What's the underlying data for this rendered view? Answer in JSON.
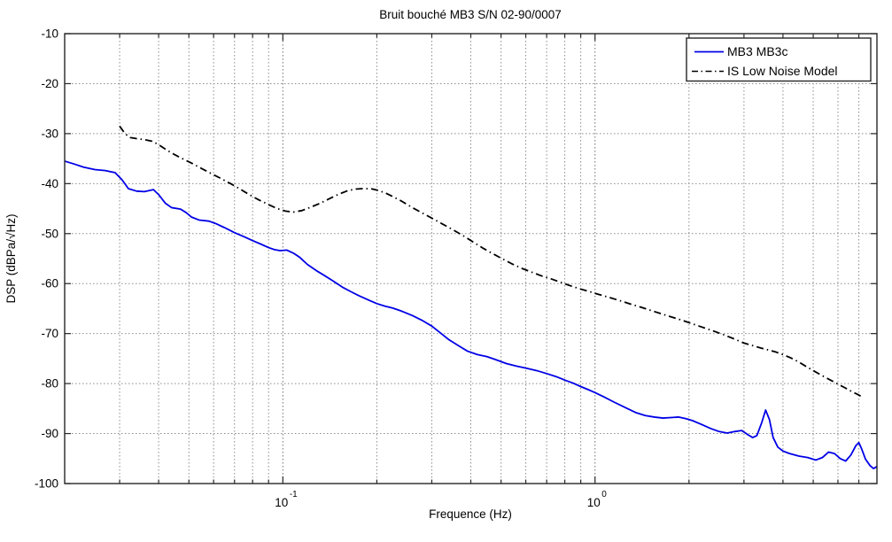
{
  "figure": {
    "title": "Bruit bouché MB3 S/N 02-90/0007",
    "xlabel": "Frequence (Hz)",
    "ylabel": "DSP (dBPa/√Hz)"
  },
  "colors": {
    "series1": "#0000e6",
    "series2": "#000000",
    "grid_minor": "#8c8c8c",
    "grid_major": "#6e6e6e",
    "axis_box": "#262626",
    "background": "#ffffff"
  },
  "chart_data": {
    "type": "line",
    "title": "Bruit bouché MB3 S/N 02-90/0007",
    "xlabel": "Frequence (Hz)",
    "ylabel": "DSP (dBPa/√Hz)",
    "x_scale": "log",
    "xlim": [
      0.02,
      8
    ],
    "ylim": [
      -100,
      -10
    ],
    "grid": "dotted",
    "legend_position": "top-right",
    "y_ticks": [
      -10,
      -20,
      -30,
      -40,
      -50,
      -60,
      -70,
      -80,
      -90,
      -100
    ],
    "x_major_ticks": [
      {
        "value": 0.1,
        "label_base": "10",
        "label_exp": "-1"
      },
      {
        "value": 1,
        "label_base": "10",
        "label_exp": "0"
      }
    ],
    "series": [
      {
        "name": "MB3 MB3c",
        "color": "#0000e6",
        "line_style": "solid",
        "points": [
          [
            0.02,
            -35.5
          ],
          [
            0.0215,
            -36.1
          ],
          [
            0.023,
            -36.7
          ],
          [
            0.025,
            -37.2
          ],
          [
            0.027,
            -37.4
          ],
          [
            0.029,
            -37.8
          ],
          [
            0.0305,
            -39.2
          ],
          [
            0.032,
            -41.0
          ],
          [
            0.034,
            -41.5
          ],
          [
            0.036,
            -41.6
          ],
          [
            0.0385,
            -41.2
          ],
          [
            0.04,
            -42.2
          ],
          [
            0.042,
            -43.9
          ],
          [
            0.044,
            -44.8
          ],
          [
            0.047,
            -45.1
          ],
          [
            0.049,
            -45.8
          ],
          [
            0.051,
            -46.7
          ],
          [
            0.054,
            -47.3
          ],
          [
            0.058,
            -47.5
          ],
          [
            0.061,
            -48.0
          ],
          [
            0.065,
            -48.8
          ],
          [
            0.07,
            -49.8
          ],
          [
            0.075,
            -50.6
          ],
          [
            0.08,
            -51.4
          ],
          [
            0.085,
            -52.1
          ],
          [
            0.09,
            -52.8
          ],
          [
            0.094,
            -53.2
          ],
          [
            0.098,
            -53.4
          ],
          [
            0.103,
            -53.3
          ],
          [
            0.108,
            -53.9
          ],
          [
            0.113,
            -54.7
          ],
          [
            0.12,
            -56.2
          ],
          [
            0.128,
            -57.4
          ],
          [
            0.136,
            -58.4
          ],
          [
            0.145,
            -59.5
          ],
          [
            0.155,
            -60.7
          ],
          [
            0.165,
            -61.6
          ],
          [
            0.175,
            -62.4
          ],
          [
            0.19,
            -63.4
          ],
          [
            0.2,
            -64.0
          ],
          [
            0.212,
            -64.5
          ],
          [
            0.225,
            -64.9
          ],
          [
            0.24,
            -65.5
          ],
          [
            0.26,
            -66.4
          ],
          [
            0.28,
            -67.4
          ],
          [
            0.3,
            -68.5
          ],
          [
            0.32,
            -69.9
          ],
          [
            0.34,
            -71.2
          ],
          [
            0.365,
            -72.4
          ],
          [
            0.39,
            -73.5
          ],
          [
            0.42,
            -74.2
          ],
          [
            0.45,
            -74.6
          ],
          [
            0.48,
            -75.2
          ],
          [
            0.52,
            -76.0
          ],
          [
            0.56,
            -76.5
          ],
          [
            0.6,
            -76.9
          ],
          [
            0.65,
            -77.4
          ],
          [
            0.7,
            -78.0
          ],
          [
            0.75,
            -78.6
          ],
          [
            0.8,
            -79.3
          ],
          [
            0.85,
            -79.9
          ],
          [
            0.9,
            -80.6
          ],
          [
            0.95,
            -81.2
          ],
          [
            1.0,
            -81.8
          ],
          [
            1.07,
            -82.7
          ],
          [
            1.15,
            -83.7
          ],
          [
            1.25,
            -84.8
          ],
          [
            1.35,
            -85.8
          ],
          [
            1.45,
            -86.4
          ],
          [
            1.55,
            -86.7
          ],
          [
            1.65,
            -86.9
          ],
          [
            1.75,
            -86.8
          ],
          [
            1.85,
            -86.7
          ],
          [
            1.95,
            -87.0
          ],
          [
            2.05,
            -87.4
          ],
          [
            2.2,
            -88.2
          ],
          [
            2.35,
            -89.0
          ],
          [
            2.5,
            -89.6
          ],
          [
            2.65,
            -89.9
          ],
          [
            2.8,
            -89.6
          ],
          [
            2.95,
            -89.4
          ],
          [
            3.1,
            -90.3
          ],
          [
            3.2,
            -90.8
          ],
          [
            3.3,
            -90.4
          ],
          [
            3.42,
            -87.8
          ],
          [
            3.52,
            -85.3
          ],
          [
            3.62,
            -87.2
          ],
          [
            3.72,
            -90.8
          ],
          [
            3.85,
            -92.7
          ],
          [
            4.0,
            -93.5
          ],
          [
            4.2,
            -94.0
          ],
          [
            4.5,
            -94.5
          ],
          [
            4.8,
            -94.8
          ],
          [
            5.1,
            -95.3
          ],
          [
            5.35,
            -94.8
          ],
          [
            5.6,
            -93.7
          ],
          [
            5.85,
            -94.0
          ],
          [
            6.1,
            -95.0
          ],
          [
            6.35,
            -95.5
          ],
          [
            6.6,
            -94.3
          ],
          [
            6.85,
            -92.4
          ],
          [
            7.0,
            -91.8
          ],
          [
            7.15,
            -93.1
          ],
          [
            7.35,
            -95.1
          ],
          [
            7.6,
            -96.4
          ],
          [
            7.8,
            -97.0
          ],
          [
            8.0,
            -96.6
          ]
        ]
      },
      {
        "name": "IS Low Noise Model",
        "color": "#000000",
        "line_style": "dash-dot",
        "points": [
          [
            0.03,
            -28.5
          ],
          [
            0.0312,
            -30.0
          ],
          [
            0.0325,
            -30.8
          ],
          [
            0.034,
            -31.0
          ],
          [
            0.036,
            -31.2
          ],
          [
            0.038,
            -31.5
          ],
          [
            0.04,
            -32.2
          ],
          [
            0.0425,
            -33.3
          ],
          [
            0.045,
            -34.2
          ],
          [
            0.048,
            -35.1
          ],
          [
            0.051,
            -35.9
          ],
          [
            0.055,
            -37.0
          ],
          [
            0.059,
            -38.0
          ],
          [
            0.063,
            -38.9
          ],
          [
            0.068,
            -40.0
          ],
          [
            0.073,
            -41.1
          ],
          [
            0.078,
            -42.2
          ],
          [
            0.084,
            -43.3
          ],
          [
            0.09,
            -44.2
          ],
          [
            0.096,
            -45.0
          ],
          [
            0.102,
            -45.5
          ],
          [
            0.108,
            -45.7
          ],
          [
            0.115,
            -45.4
          ],
          [
            0.123,
            -44.7
          ],
          [
            0.132,
            -43.9
          ],
          [
            0.141,
            -43.0
          ],
          [
            0.15,
            -42.2
          ],
          [
            0.16,
            -41.5
          ],
          [
            0.17,
            -41.1
          ],
          [
            0.18,
            -41.0
          ],
          [
            0.191,
            -41.0
          ],
          [
            0.2,
            -41.3
          ],
          [
            0.212,
            -41.8
          ],
          [
            0.225,
            -42.6
          ],
          [
            0.24,
            -43.5
          ],
          [
            0.26,
            -44.8
          ],
          [
            0.28,
            -45.9
          ],
          [
            0.3,
            -46.9
          ],
          [
            0.325,
            -48.1
          ],
          [
            0.35,
            -49.2
          ],
          [
            0.38,
            -50.5
          ],
          [
            0.41,
            -51.8
          ],
          [
            0.44,
            -53.0
          ],
          [
            0.47,
            -54.0
          ],
          [
            0.5,
            -54.9
          ],
          [
            0.54,
            -56.0
          ],
          [
            0.58,
            -56.9
          ],
          [
            0.62,
            -57.6
          ],
          [
            0.67,
            -58.4
          ],
          [
            0.72,
            -59.0
          ],
          [
            0.78,
            -59.8
          ],
          [
            0.84,
            -60.5
          ],
          [
            0.9,
            -61.1
          ],
          [
            0.96,
            -61.6
          ],
          [
            1.02,
            -62.1
          ],
          [
            1.1,
            -62.7
          ],
          [
            1.2,
            -63.4
          ],
          [
            1.3,
            -64.1
          ],
          [
            1.4,
            -64.7
          ],
          [
            1.55,
            -65.6
          ],
          [
            1.7,
            -66.4
          ],
          [
            1.85,
            -67.1
          ],
          [
            2.0,
            -67.8
          ],
          [
            2.2,
            -68.7
          ],
          [
            2.4,
            -69.5
          ],
          [
            2.6,
            -70.3
          ],
          [
            2.8,
            -71.1
          ],
          [
            3.0,
            -71.9
          ],
          [
            3.2,
            -72.4
          ],
          [
            3.4,
            -72.9
          ],
          [
            3.6,
            -73.3
          ],
          [
            3.8,
            -73.7
          ],
          [
            4.0,
            -74.2
          ],
          [
            4.25,
            -74.9
          ],
          [
            4.5,
            -75.7
          ],
          [
            4.75,
            -76.6
          ],
          [
            5.0,
            -77.4
          ],
          [
            5.3,
            -78.3
          ],
          [
            5.6,
            -79.1
          ],
          [
            6.0,
            -80.1
          ],
          [
            6.3,
            -80.8
          ],
          [
            6.6,
            -81.5
          ],
          [
            6.9,
            -82.1
          ],
          [
            7.15,
            -82.6
          ]
        ]
      }
    ]
  }
}
